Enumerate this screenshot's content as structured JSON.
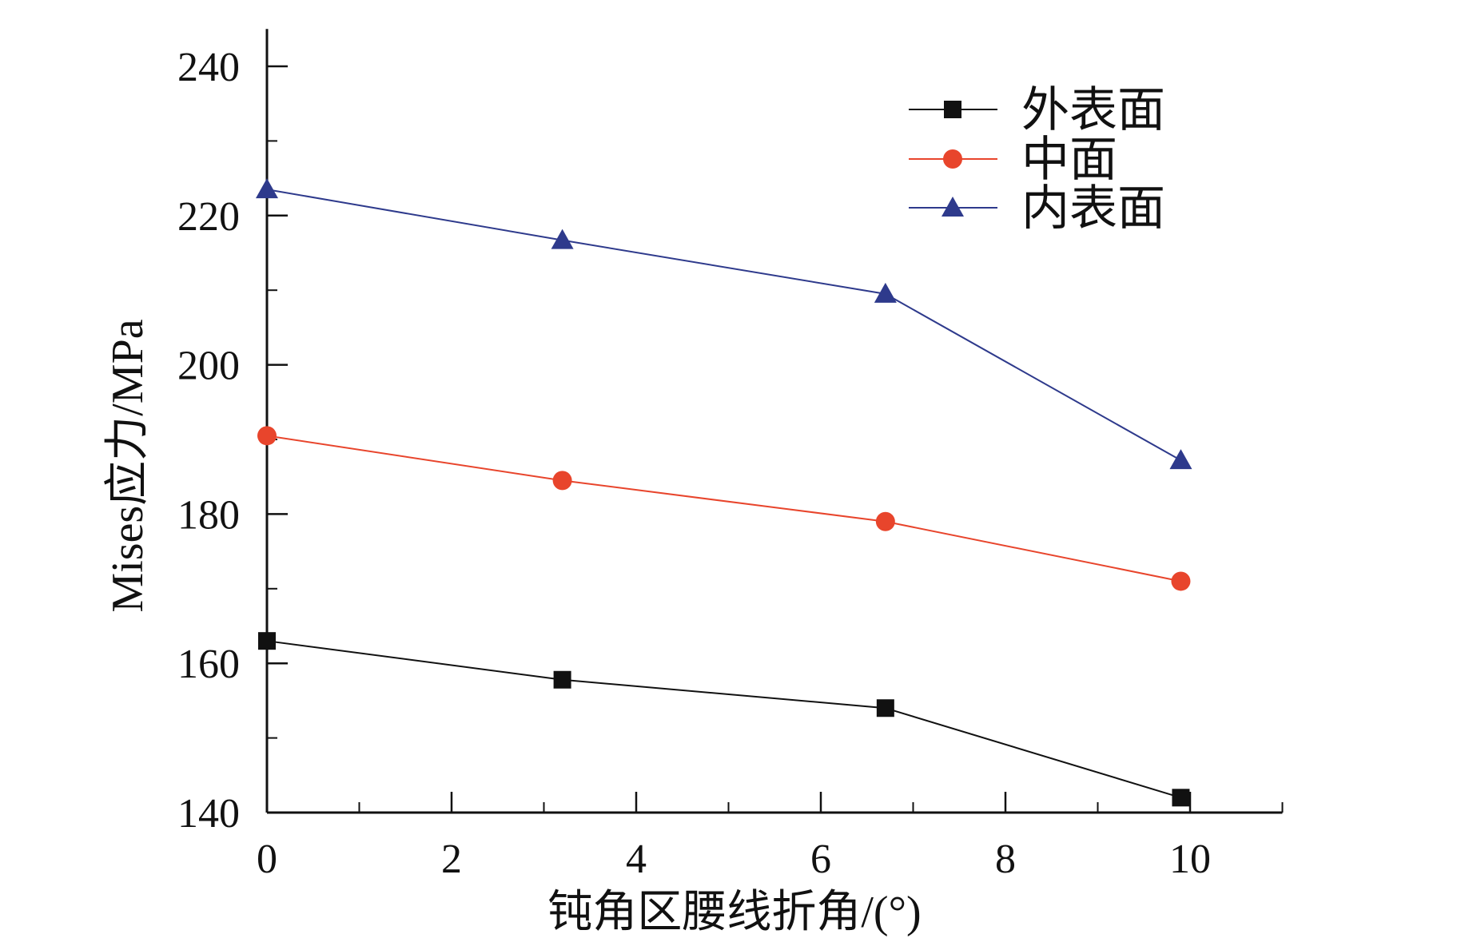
{
  "chart_data": {
    "type": "line",
    "title": "",
    "xlabel": "钝角区腰线折角/(°)",
    "ylabel": "Mises应力/MPa",
    "xlim": [
      0,
      11
    ],
    "ylim": [
      140,
      245
    ],
    "xticks": [
      0,
      2,
      4,
      6,
      8,
      10
    ],
    "xtick_labels": [
      "0",
      "2",
      "4",
      "6",
      "8",
      "10"
    ],
    "yticks": [
      140,
      160,
      180,
      200,
      220,
      240
    ],
    "ytick_labels": [
      "140",
      "160",
      "180",
      "200",
      "220",
      "240"
    ],
    "grid": false,
    "legend_position": "top-right",
    "x": [
      0,
      3.2,
      6.7,
      9.9
    ],
    "series": [
      {
        "name": "外表面",
        "values": [
          163,
          157.8,
          154,
          142
        ],
        "color": "#111111",
        "marker": "square"
      },
      {
        "name": "中面",
        "values": [
          190.5,
          184.5,
          179,
          171
        ],
        "color": "#e8452c",
        "marker": "circle"
      },
      {
        "name": "内表面",
        "values": [
          223.5,
          216.7,
          209.5,
          187.2
        ],
        "color": "#2e3a8c",
        "marker": "triangle"
      }
    ]
  }
}
